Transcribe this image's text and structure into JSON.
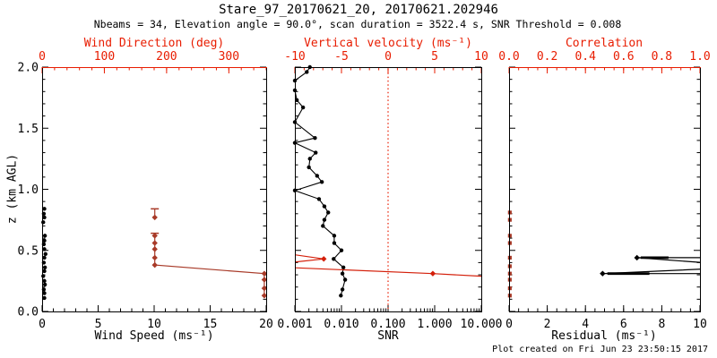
{
  "title": "Stare_97_20170621_20, 20170621.202946",
  "subtitle": "Nbeams = 34, Elevation angle = 90.0°, scan duration = 3522.4 s, SNR Threshold = 0.008",
  "footer": "Plot created on Fri Jun 23 23:50:15 2017",
  "colors": {
    "background": "#ffffff",
    "frame_black": "#000000",
    "axis_red": "#e81c00",
    "data_red": "#a83a28",
    "line_red": "#d41f0a",
    "black": "#000000"
  },
  "y_axis": {
    "label": "z (km AGL)",
    "min": 0,
    "max": 2,
    "ticks": [
      0,
      0.5,
      1,
      1.5,
      2
    ],
    "tick_labels": [
      "0.0",
      "0.5",
      "1.0",
      "1.5",
      "2.0"
    ],
    "minor_step": 0.1
  },
  "chart_data": [
    {
      "name": "wind",
      "type": "scatter",
      "bottom_axis": {
        "label": "Wind Speed (ms⁻¹)",
        "min": 0,
        "max": 20,
        "ticks": [
          0,
          5,
          10,
          15,
          20
        ],
        "tick_labels": [
          "0",
          "5",
          "10",
          "15",
          "20"
        ],
        "minor_step": 1,
        "color": "black"
      },
      "top_axis": {
        "label": "Wind Direction (deg)",
        "min": 0,
        "max": 360,
        "ticks": [
          0,
          100,
          200,
          300
        ],
        "tick_labels": [
          "0",
          "100",
          "200",
          "300"
        ],
        "minor_step": 20,
        "color": "axis_red",
        "frame_line": "axis_red"
      },
      "series": [
        {
          "name": "wind-speed-profile",
          "axis": "bottom_axis",
          "color": "black",
          "marker": "circle",
          "line": false,
          "points": [
            [
              0.2,
              0.84
            ],
            [
              0.15,
              0.8
            ],
            [
              0.2,
              0.77
            ],
            [
              0.1,
              0.73
            ],
            [
              0.25,
              0.62
            ],
            [
              0.2,
              0.58
            ],
            [
              0.15,
              0.55
            ],
            [
              0.2,
              0.51
            ],
            [
              0.3,
              0.47
            ],
            [
              0.2,
              0.44
            ],
            [
              0.15,
              0.4
            ],
            [
              0.25,
              0.36
            ],
            [
              0.2,
              0.33
            ],
            [
              0.1,
              0.29
            ],
            [
              0.2,
              0.25
            ],
            [
              0.25,
              0.22
            ],
            [
              0.15,
              0.18
            ],
            [
              0.2,
              0.15
            ],
            [
              0.2,
              0.11
            ]
          ]
        },
        {
          "name": "wind-direction-profile",
          "axis": "top_axis",
          "color": "data_red",
          "marker": "diamond",
          "line": false,
          "points": [
            [
              181,
              0.77
            ],
            [
              181,
              0.62
            ],
            [
              181,
              0.56
            ],
            [
              181,
              0.51
            ],
            [
              181,
              0.44
            ],
            [
              181,
              0.38
            ],
            [
              357,
              0.31
            ],
            [
              357,
              0.26
            ],
            [
              357,
              0.19
            ],
            [
              357,
              0.13
            ]
          ],
          "error_caps": [
            [
              181,
              0.84
            ],
            [
              181,
              0.64
            ]
          ],
          "lines": [
            [
              [
                181,
                0.84
              ],
              [
                181,
                0.77
              ]
            ],
            [
              [
                181,
                0.64
              ],
              [
                181,
                0.62
              ],
              [
                181,
                0.56
              ],
              [
                181,
                0.51
              ],
              [
                181,
                0.44
              ],
              [
                181,
                0.38
              ],
              [
                357,
                0.31
              ],
              [
                357,
                0.26
              ],
              [
                357,
                0.19
              ],
              [
                357,
                0.13
              ]
            ]
          ]
        }
      ]
    },
    {
      "name": "snr",
      "type": "scatter",
      "bottom_axis": {
        "label": "SNR",
        "scale": "log",
        "min": 0.001,
        "max": 10,
        "ticks": [
          0.001,
          0.01,
          0.1,
          1,
          10
        ],
        "tick_labels": [
          "0.001",
          "0.010",
          "0.100",
          "1.000",
          "10.000"
        ],
        "color": "black"
      },
      "top_axis": {
        "label": "Vertical velocity (ms⁻¹)",
        "min": -10,
        "max": 10,
        "ticks": [
          -10,
          -5,
          0,
          5,
          10
        ],
        "tick_labels": [
          "-10",
          "-5",
          "0",
          "5",
          "10"
        ],
        "minor_step": 1,
        "color": "axis_red",
        "frame_line": "frame_black"
      },
      "refline": {
        "axis": "top_axis",
        "value": 0,
        "color": "axis_red",
        "style": "dotted"
      },
      "series": [
        {
          "name": "snr-profile",
          "axis": "bottom_axis",
          "color": "black",
          "marker": "circle",
          "line": true,
          "points": [
            [
              0.0021,
              2.0
            ],
            [
              0.0018,
              1.96
            ],
            [
              0.001,
              1.89
            ],
            [
              0.001,
              1.81
            ],
            [
              0.0011,
              1.73
            ],
            [
              0.0015,
              1.67
            ],
            [
              0.001,
              1.55
            ],
            [
              0.0027,
              1.42
            ],
            [
              0.001,
              1.38
            ],
            [
              0.0028,
              1.3
            ],
            [
              0.0021,
              1.25
            ],
            [
              0.002,
              1.18
            ],
            [
              0.003,
              1.11
            ],
            [
              0.0038,
              1.06
            ],
            [
              0.001,
              0.99
            ],
            [
              0.0033,
              0.92
            ],
            [
              0.0043,
              0.86
            ],
            [
              0.0052,
              0.81
            ],
            [
              0.0043,
              0.75
            ],
            [
              0.004,
              0.7
            ],
            [
              0.007,
              0.62
            ],
            [
              0.007,
              0.56
            ],
            [
              0.01,
              0.5
            ],
            [
              0.0068,
              0.43
            ],
            [
              0.011,
              0.36
            ],
            [
              0.0105,
              0.31
            ],
            [
              0.012,
              0.26
            ],
            [
              0.0105,
              0.18
            ],
            [
              0.0097,
              0.13
            ]
          ]
        },
        {
          "name": "vertical-velocity-profile",
          "axis": "top_axis",
          "color": "line_red",
          "marker": "diamond",
          "line": false,
          "points": [
            [
              -6.9,
              0.43
            ],
            [
              4.8,
              0.31
            ]
          ],
          "lines": [
            [
              [
                -10.6,
                0.47
              ],
              [
                -6.9,
                0.43
              ],
              [
                -10.6,
                0.4
              ]
            ],
            [
              [
                -10.6,
                0.36
              ],
              [
                4.8,
                0.31
              ],
              [
                10.8,
                0.285
              ]
            ]
          ]
        }
      ]
    },
    {
      "name": "residual",
      "type": "scatter",
      "bottom_axis": {
        "label": "Residual (ms⁻¹)",
        "min": 0,
        "max": 10,
        "ticks": [
          0,
          2,
          4,
          6,
          8,
          10
        ],
        "tick_labels": [
          "0",
          "2",
          "4",
          "6",
          "8",
          "10"
        ],
        "minor_step": 0.5,
        "color": "black"
      },
      "top_axis": {
        "label": "Correlation",
        "min": 0,
        "max": 1,
        "ticks": [
          0,
          0.2,
          0.4,
          0.6,
          0.8,
          1
        ],
        "tick_labels": [
          "0.0",
          "0.2",
          "0.4",
          "0.6",
          "0.8",
          "1.0"
        ],
        "minor_step": 0.05,
        "color": "axis_red",
        "frame_line": "axis_red"
      },
      "series": [
        {
          "name": "residual-profile",
          "axis": "bottom_axis",
          "color": "black",
          "marker": "diamond",
          "line": false,
          "points": [
            [
              6.7,
              0.44
            ],
            [
              4.9,
              0.31
            ]
          ],
          "lines": [
            [
              [
                10.6,
                0.44
              ],
              [
                6.7,
                0.44
              ],
              [
                10.6,
                0.395
              ]
            ],
            [
              [
                10.6,
                0.35
              ],
              [
                4.9,
                0.31
              ],
              [
                10.6,
                0.31
              ]
            ]
          ],
          "thick_lines": [
            [
              [
                6.9,
                0.44
              ],
              [
                8.35,
                0.44
              ]
            ],
            [
              [
                5.15,
                0.31
              ],
              [
                7.35,
                0.31
              ]
            ]
          ]
        },
        {
          "name": "correlation-profile",
          "axis": "top_axis",
          "color": "data_red",
          "marker": "square",
          "line": false,
          "points": [
            [
              0.004,
              0.81
            ],
            [
              0.004,
              0.75
            ],
            [
              0.004,
              0.62
            ],
            [
              0.004,
              0.56
            ],
            [
              0.004,
              0.44
            ],
            [
              0.004,
              0.37
            ],
            [
              0.004,
              0.31
            ],
            [
              0.004,
              0.26
            ],
            [
              0.004,
              0.19
            ],
            [
              0.004,
              0.13
            ]
          ]
        }
      ]
    }
  ]
}
